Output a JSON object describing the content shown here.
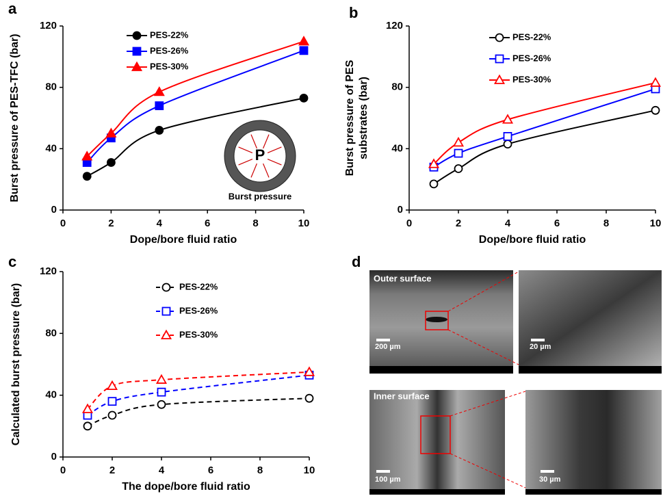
{
  "chart_data": [
    {
      "type": "line",
      "panel": "a",
      "xlabel": "Dope/bore fluid ratio",
      "ylabel": [
        "Burst pressure of PES-TFC (bar)"
      ],
      "x": [
        1,
        2,
        4,
        10
      ],
      "xlim": [
        0,
        10
      ],
      "xticks": [
        0,
        2,
        4,
        6,
        8,
        10
      ],
      "ylim": [
        0,
        120
      ],
      "yticks": [
        0,
        40,
        80,
        120
      ],
      "marker_fill": "filled",
      "line_style": "solid",
      "series": [
        {
          "name": "PES-22%",
          "color": "#000000",
          "marker": "circle",
          "values": [
            22,
            31,
            52,
            73
          ]
        },
        {
          "name": "PES-26%",
          "color": "#0000ff",
          "marker": "square",
          "values": [
            31,
            47,
            68,
            104
          ]
        },
        {
          "name": "PES-30%",
          "color": "#ff0000",
          "marker": "triangle",
          "values": [
            35,
            50,
            77,
            110
          ]
        }
      ],
      "inset": {
        "symbol": "P",
        "caption": "Burst pressure"
      }
    },
    {
      "type": "line",
      "panel": "b",
      "xlabel": "Dope/bore fluid ratio",
      "ylabel": [
        "Burst pressure of PES",
        "substrates (bar)"
      ],
      "x": [
        1,
        2,
        4,
        10
      ],
      "xlim": [
        0,
        10
      ],
      "xticks": [
        0,
        2,
        4,
        6,
        8,
        10
      ],
      "ylim": [
        0,
        120
      ],
      "yticks": [
        0,
        40,
        80,
        120
      ],
      "marker_fill": "open",
      "line_style": "solid",
      "series": [
        {
          "name": "PES-22%",
          "color": "#000000",
          "marker": "circle",
          "values": [
            17,
            27,
            43,
            65
          ]
        },
        {
          "name": "PES-26%",
          "color": "#0000ff",
          "marker": "square",
          "values": [
            28,
            37,
            48,
            79
          ]
        },
        {
          "name": "PES-30%",
          "color": "#ff0000",
          "marker": "triangle",
          "values": [
            30,
            44,
            59,
            83
          ]
        }
      ]
    },
    {
      "type": "line",
      "panel": "c",
      "xlabel": "The dope/bore fluid ratio",
      "ylabel": [
        "Calculated burst pressure (bar)"
      ],
      "x": [
        1,
        2,
        4,
        10
      ],
      "xlim": [
        0,
        10
      ],
      "xticks": [
        0,
        2,
        4,
        6,
        8,
        10
      ],
      "ylim": [
        0,
        120
      ],
      "yticks": [
        0,
        40,
        80,
        120
      ],
      "marker_fill": "open",
      "line_style": "dashed",
      "series": [
        {
          "name": "PES-22%",
          "color": "#000000",
          "marker": "circle",
          "values": [
            20,
            27,
            34,
            38
          ]
        },
        {
          "name": "PES-26%",
          "color": "#0000ff",
          "marker": "square",
          "values": [
            27,
            36,
            42,
            53
          ]
        },
        {
          "name": "PES-30%",
          "color": "#ff0000",
          "marker": "triangle",
          "values": [
            31,
            46,
            50,
            55
          ]
        }
      ]
    }
  ],
  "panel_d": {
    "label": "d",
    "images": [
      {
        "caption": "Outer surface",
        "scale": "200 µm"
      },
      {
        "scale": "20 µm"
      },
      {
        "caption": "Inner surface",
        "scale": "100 µm"
      },
      {
        "scale": "30 µm"
      }
    ]
  }
}
